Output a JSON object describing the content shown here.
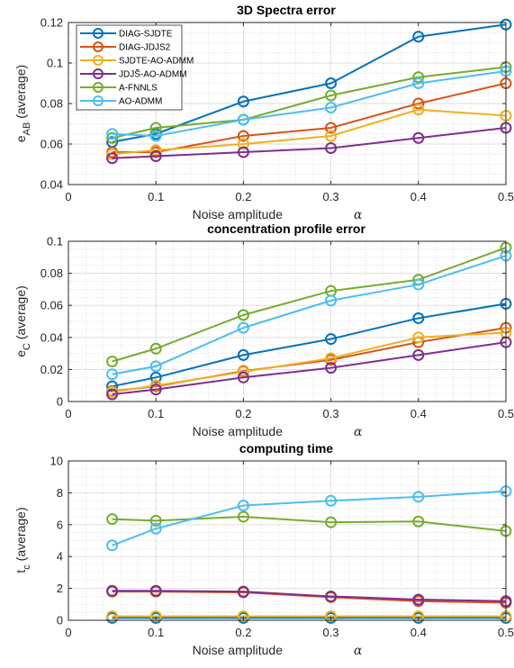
{
  "colors": [
    "#0072BD",
    "#D95319",
    "#EDB120",
    "#7E2F8E",
    "#77AC30",
    "#4DBEEE"
  ],
  "legend": [
    "DIAG-SJDTE",
    "DIAG-JDJS2",
    "SJDTE-AO-ADMM",
    "JDJS̃-AO-ADMM",
    "A-FNNLS",
    "AO-ADMM"
  ],
  "chart_data": [
    {
      "type": "line",
      "title": "3D Spectra error",
      "xlabel": "Noise amplitude",
      "xlabel_symbol": "α",
      "ylabel": "e",
      "ylabel_sub": "AB",
      "ylabel_suffix": " (average)",
      "x": [
        0.05,
        0.1,
        0.2,
        0.3,
        0.4,
        0.5
      ],
      "xlim": [
        0,
        0.5
      ],
      "ylim": [
        0.04,
        0.12
      ],
      "xticks": [
        0,
        0.1,
        0.2,
        0.3,
        0.4,
        0.5
      ],
      "xtick_labels": [
        "0",
        "0.1",
        "0.2",
        "0.3",
        "0.4",
        "0.5"
      ],
      "yticks": [
        0.04,
        0.06,
        0.08,
        0.1,
        0.12
      ],
      "ytick_labels": [
        "0.04",
        "0.06",
        "0.08",
        "0.1",
        "0.12"
      ],
      "minor_xticks": [
        0.02,
        0.04,
        0.06,
        0.08,
        0.12,
        0.14,
        0.16,
        0.18,
        0.22,
        0.24,
        0.26,
        0.28,
        0.32,
        0.34,
        0.36,
        0.38,
        0.42,
        0.44,
        0.46,
        0.48
      ],
      "minor_yticks": [
        0.045,
        0.05,
        0.055,
        0.065,
        0.07,
        0.075,
        0.085,
        0.09,
        0.095,
        0.105,
        0.11,
        0.115
      ],
      "grid": true,
      "legend_position": "top-left",
      "series": [
        {
          "name": "DIAG-SJDTE",
          "values": [
            0.061,
            0.065,
            0.081,
            0.09,
            0.113,
            0.119
          ]
        },
        {
          "name": "DIAG-JDJS2",
          "values": [
            0.056,
            0.056,
            0.064,
            0.068,
            0.08,
            0.09
          ]
        },
        {
          "name": "SJDTE-AO-ADMM",
          "values": [
            0.055,
            0.057,
            0.06,
            0.064,
            0.077,
            0.074
          ]
        },
        {
          "name": "JDJS̃-AO-ADMM",
          "values": [
            0.053,
            0.054,
            0.056,
            0.058,
            0.063,
            0.068
          ]
        },
        {
          "name": "A-FNNLS",
          "values": [
            0.063,
            0.068,
            0.072,
            0.084,
            0.093,
            0.098
          ]
        },
        {
          "name": "AO-ADMM",
          "values": [
            0.065,
            0.064,
            0.072,
            0.078,
            0.09,
            0.096
          ]
        }
      ]
    },
    {
      "type": "line",
      "title": "concentration profile error",
      "xlabel": "Noise amplitude",
      "xlabel_symbol": "α",
      "ylabel": "e",
      "ylabel_sub": "C",
      "ylabel_suffix": " (average)",
      "x": [
        0.05,
        0.1,
        0.2,
        0.3,
        0.4,
        0.5
      ],
      "xlim": [
        0,
        0.5
      ],
      "ylim": [
        0,
        0.1
      ],
      "xticks": [
        0,
        0.1,
        0.2,
        0.3,
        0.4,
        0.5
      ],
      "xtick_labels": [
        "0",
        "0.1",
        "0.2",
        "0.3",
        "0.4",
        "0.5"
      ],
      "yticks": [
        0,
        0.02,
        0.04,
        0.06,
        0.08,
        0.1
      ],
      "ytick_labels": [
        "0",
        "0.02",
        "0.04",
        "0.06",
        "0.08",
        "0.1"
      ],
      "minor_xticks": [
        0.02,
        0.04,
        0.06,
        0.08,
        0.12,
        0.14,
        0.16,
        0.18,
        0.22,
        0.24,
        0.26,
        0.28,
        0.32,
        0.34,
        0.36,
        0.38,
        0.42,
        0.44,
        0.46,
        0.48
      ],
      "minor_yticks": [
        0.005,
        0.01,
        0.015,
        0.025,
        0.03,
        0.035,
        0.045,
        0.05,
        0.055,
        0.065,
        0.07,
        0.075,
        0.085,
        0.09,
        0.095
      ],
      "grid": true,
      "series": [
        {
          "name": "DIAG-SJDTE",
          "values": [
            0.0095,
            0.015,
            0.029,
            0.039,
            0.052,
            0.061
          ]
        },
        {
          "name": "DIAG-JDJS2",
          "values": [
            0.0065,
            0.0095,
            0.019,
            0.026,
            0.037,
            0.046
          ]
        },
        {
          "name": "SJDTE-AO-ADMM",
          "values": [
            0.006,
            0.01,
            0.0185,
            0.027,
            0.04,
            0.043
          ]
        },
        {
          "name": "JDJS̃-AO-ADMM",
          "values": [
            0.0045,
            0.0075,
            0.015,
            0.021,
            0.029,
            0.037
          ]
        },
        {
          "name": "A-FNNLS",
          "values": [
            0.025,
            0.033,
            0.054,
            0.069,
            0.076,
            0.096
          ]
        },
        {
          "name": "AO-ADMM",
          "values": [
            0.017,
            0.022,
            0.046,
            0.063,
            0.073,
            0.091
          ]
        }
      ]
    },
    {
      "type": "line",
      "title": "computing time",
      "xlabel": "Noise amplitude",
      "xlabel_symbol": "α",
      "ylabel": "t",
      "ylabel_sub": "c",
      "ylabel_suffix": " (average)",
      "x": [
        0.05,
        0.1,
        0.2,
        0.3,
        0.4,
        0.5
      ],
      "xlim": [
        0,
        0.5
      ],
      "ylim": [
        0,
        10
      ],
      "xticks": [
        0,
        0.1,
        0.2,
        0.3,
        0.4,
        0.5
      ],
      "xtick_labels": [
        "0",
        "0.1",
        "0.2",
        "0.3",
        "0.4",
        "0.5"
      ],
      "yticks": [
        0,
        2,
        4,
        6,
        8,
        10
      ],
      "ytick_labels": [
        "0",
        "2",
        "4",
        "6",
        "8",
        "10"
      ],
      "minor_xticks": [
        0.02,
        0.04,
        0.06,
        0.08,
        0.12,
        0.14,
        0.16,
        0.18,
        0.22,
        0.24,
        0.26,
        0.28,
        0.32,
        0.34,
        0.36,
        0.38,
        0.42,
        0.44,
        0.46,
        0.48
      ],
      "minor_yticks": [
        0.5,
        1,
        1.5,
        2.5,
        3,
        3.5,
        4.5,
        5,
        5.5,
        6.5,
        7,
        7.5,
        8.5,
        9,
        9.5
      ],
      "grid": true,
      "series": [
        {
          "name": "DIAG-SJDTE",
          "values": [
            0.15,
            0.15,
            0.15,
            0.15,
            0.15,
            0.15
          ]
        },
        {
          "name": "DIAG-JDJS2",
          "values": [
            1.8,
            1.8,
            1.75,
            1.45,
            1.2,
            1.1
          ]
        },
        {
          "name": "SJDTE-AO-ADMM",
          "values": [
            0.25,
            0.25,
            0.25,
            0.25,
            0.25,
            0.25
          ]
        },
        {
          "name": "JDJS̃-AO-ADMM",
          "values": [
            1.85,
            1.85,
            1.8,
            1.5,
            1.3,
            1.2
          ]
        },
        {
          "name": "A-FNNLS",
          "values": [
            6.35,
            6.25,
            6.5,
            6.15,
            6.2,
            5.6
          ]
        },
        {
          "name": "AO-ADMM",
          "values": [
            4.7,
            5.75,
            7.2,
            7.5,
            7.75,
            8.1
          ]
        }
      ]
    }
  ]
}
